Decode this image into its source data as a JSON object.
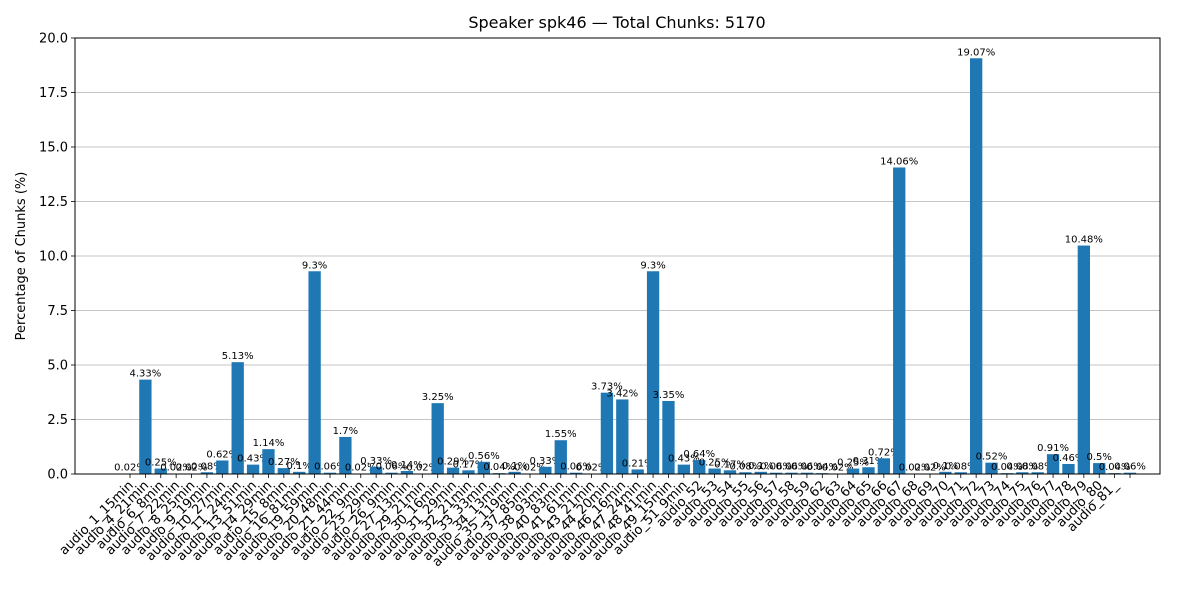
{
  "chart_data": {
    "type": "bar",
    "title": "Speaker spk46 — Total Chunks: 5170",
    "y_label": "Percentage of Chunks (%)",
    "categories": [
      "audio_1_15min",
      "audio_4_21min",
      "audio_6_8min",
      "audio_7_22min",
      "audio_8_25min",
      "audio_9_19min",
      "audio_10_27min",
      "audio_11_24min",
      "audio_13_51min",
      "audio_14_29min",
      "audio_15_8min",
      "audio_16_81min",
      "audio_19_59min",
      "audio_20_48min",
      "audio_21_44min",
      "audio_22_9min",
      "audio_23_29min",
      "audio_26_9min",
      "audio_27_13min",
      "audio_29_21min",
      "audio_30_16min",
      "audio_31_29min",
      "audio_32_21min",
      "audio_33_33min",
      "audio_34_13min",
      "audio_35_119min",
      "audio_37_85min",
      "audio_38_93min",
      "audio_40_83min",
      "audio_41_61min",
      "audio_43_21min",
      "audio_44_20min",
      "audio_46_16min",
      "audio_47_24min",
      "audio_48_41min",
      "audio_49_15min",
      "audio_51_9min",
      "audio_52",
      "audio_53",
      "audio_54",
      "audio_55",
      "audio_56",
      "audio_57",
      "audio_58",
      "audio_59",
      "audio_62",
      "audio_63",
      "audio_64",
      "audio_65",
      "audio_66",
      "audio_67",
      "audio_68",
      "audio_69",
      "audio_70",
      "audio_71",
      "audio_72",
      "audio_73",
      "audio_74",
      "audio_75",
      "audio_76",
      "audio_77",
      "audio_78",
      "audio_79",
      "audio_80",
      "audio_81_",
      null
    ],
    "values": [
      0.02,
      4.33,
      0.25,
      0.02,
      0.02,
      0.08,
      0.62,
      5.13,
      0.43,
      1.14,
      0.27,
      0.1,
      9.3,
      0.06,
      1.7,
      0.02,
      0.33,
      0.06,
      0.14,
      0.02,
      3.25,
      0.29,
      0.17,
      0.56,
      0.04,
      0.1,
      0.02,
      0.33,
      1.55,
      0.06,
      0.02,
      3.73,
      3.42,
      0.21,
      9.3,
      3.35,
      0.43,
      0.64,
      0.25,
      0.17,
      0.08,
      0.1,
      0.06,
      0.06,
      0.06,
      0.04,
      0.02,
      0.25,
      0.31,
      0.72,
      14.06,
      0.02,
      0.02,
      0.1,
      0.08,
      19.07,
      0.52,
      0.04,
      0.08,
      0.08,
      0.91,
      0.46,
      10.48,
      0.5,
      0.04,
      0.06
    ],
    "value_labels": [
      "0.02%",
      "4.33%",
      "0.25%",
      "0.02%",
      "0.02%",
      "0.08%",
      "0.62%",
      "5.13%",
      "0.43%",
      "1.14%",
      "0.27%",
      "0.1%",
      "9.3%",
      "0.06%",
      "1.7%",
      "0.02%",
      "0.33%",
      "0.06%",
      "0.14%",
      "0.02%",
      "3.25%",
      "0.29%",
      "0.17%",
      "0.56%",
      "0.04%",
      "0.1%",
      "0.02%",
      "0.33%",
      "1.55%",
      "0.06%",
      "0.02%",
      "3.73%",
      "3.42%",
      "0.21%",
      "9.3%",
      "3.35%",
      "0.43%",
      "0.64%",
      "0.25%",
      "0.17%",
      "0.08%",
      "0.1%",
      "0.06%",
      "0.06%",
      "0.06%",
      "0.04%",
      "0.02%",
      "0.25%",
      "0.31%",
      "0.72%",
      "14.06%",
      "0.02%",
      "0.02%",
      "0.1%",
      "0.08%",
      "19.07%",
      "0.52%",
      "0.04%",
      "0.08%",
      "0.08%",
      "0.91%",
      "0.46%",
      "10.48%",
      "0.5%",
      "0.04%",
      "0.06%"
    ],
    "color": "#1f77b4",
    "ylim": [
      0,
      20
    ],
    "yticks": [
      {
        "value": 0,
        "label": "0.0"
      },
      2.5,
      {
        "value": 5,
        "label": "5.0"
      },
      7.5,
      {
        "value": 10,
        "label": "10.0"
      },
      12.5,
      {
        "value": 15,
        "label": "15.0"
      },
      17.5,
      {
        "value": 20,
        "label": "20.0"
      }
    ],
    "grid": true
  }
}
